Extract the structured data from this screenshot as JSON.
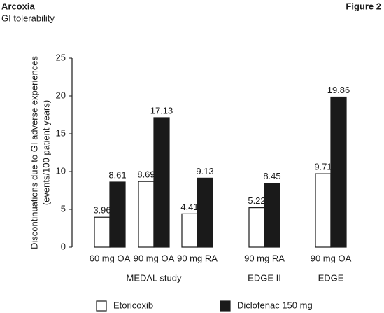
{
  "chart_data": {
    "type": "bar",
    "title": "Arcoxia",
    "subtitle": "GI tolerability",
    "figure_label": "Figure 2",
    "y_label": [
      "Discontinuations due to GI adverse experiences",
      "(events/100 patient years)"
    ],
    "categories": [
      "60 mg OA",
      "90 mg OA",
      "90 mg RA",
      "90 mg RA",
      "90 mg OA"
    ],
    "group_labels": [
      "MEDAL study",
      "EDGE II",
      "EDGE"
    ],
    "series": [
      {
        "name": "Etoricoxib",
        "color": "#ffffff",
        "values": [
          3.96,
          8.69,
          4.41,
          5.22,
          9.71
        ]
      },
      {
        "name": "Diclofenac 150 mg",
        "color": "#1a1a1a",
        "values": [
          8.61,
          17.13,
          9.13,
          8.45,
          19.86
        ]
      }
    ],
    "ylim": [
      0,
      25
    ],
    "yticks": [
      0,
      5,
      10,
      15,
      20,
      25
    ]
  }
}
